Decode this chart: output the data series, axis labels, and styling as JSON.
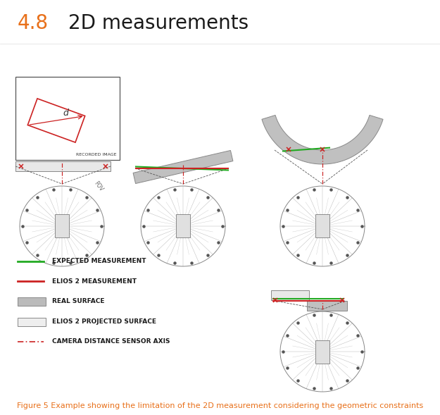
{
  "title_number": "4.8",
  "title_text": "2D measurements",
  "title_number_color": "#e8701a",
  "title_text_color": "#1a1a1a",
  "title_fontsize": 20,
  "title_number_fontsize": 20,
  "figure_caption": "Figure 5 Example showing the limitation of the 2D measurement considering the geometric constraints",
  "figure_caption_color": "#e8701a",
  "figure_caption_fontsize": 8,
  "background_color": "#ffffff",
  "legend_items": [
    {
      "label": "EXPECTED MEASUREMENT",
      "color": "#22aa22",
      "linestyle": "solid",
      "linewidth": 2,
      "is_patch": false
    },
    {
      "label": "ELIOS 2 MEASUREMENT",
      "color": "#cc2222",
      "linestyle": "solid",
      "linewidth": 2,
      "is_patch": false
    },
    {
      "label": "REAL SURFACE",
      "color": "#bbbbbb",
      "is_patch": true,
      "edgecolor": "#888888"
    },
    {
      "label": "ELIOS 2 PROJECTED SURFACE",
      "color": "#eeeeee",
      "is_patch": true,
      "edgecolor": "#888888"
    },
    {
      "label": "CAMERA DISTANCE SENSOR AXIS",
      "color": "#cc2222",
      "linestyle": "dashdot",
      "linewidth": 1.2,
      "is_patch": false
    }
  ],
  "legend_fontsize": 6.5,
  "recorded_image_label": "RECORDED IMAGE",
  "fov_label": "FOV",
  "annotation_label_d": "d",
  "surf_real_color": "#c0c0c0",
  "surf_proj_color": "#e8e8e8",
  "drone_edge_color": "#888888",
  "drone_line_color": "#aaaaaa"
}
